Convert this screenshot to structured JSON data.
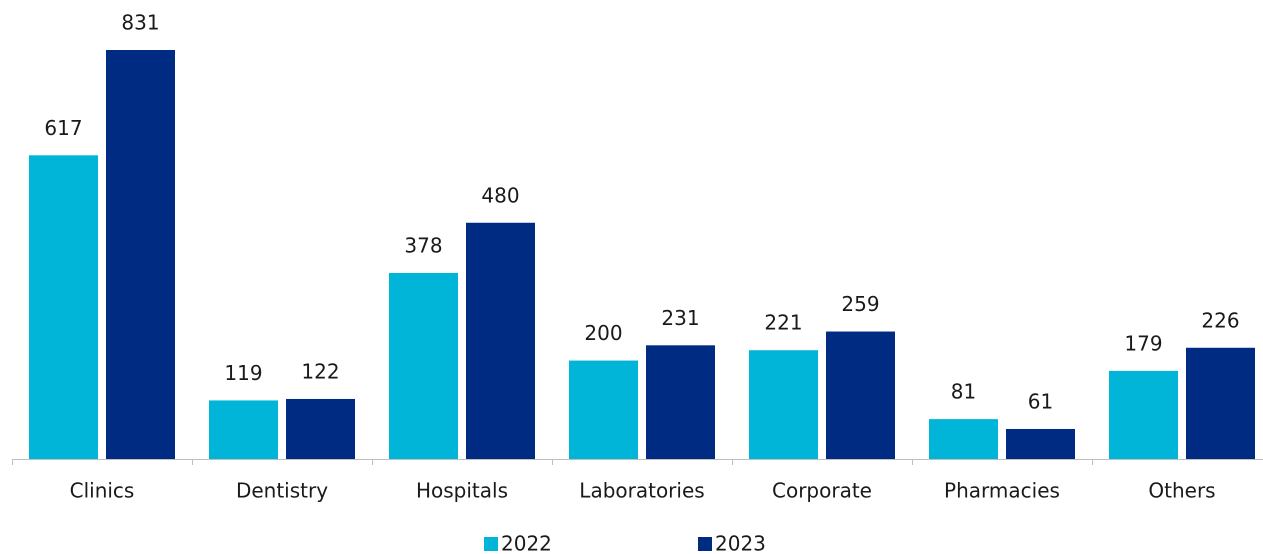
{
  "chart_data": {
    "type": "bar",
    "categories": [
      "Clinics",
      "Dentistry",
      "Hospitals",
      "Laboratories",
      "Corporate",
      "Pharmacies",
      "Others"
    ],
    "series": [
      {
        "name": "2022",
        "color": "#00b5d8",
        "values": [
          617,
          119,
          378,
          200,
          221,
          81,
          179
        ]
      },
      {
        "name": "2023",
        "color": "#002b82",
        "values": [
          831,
          122,
          480,
          231,
          259,
          61,
          226
        ]
      }
    ]
  }
}
